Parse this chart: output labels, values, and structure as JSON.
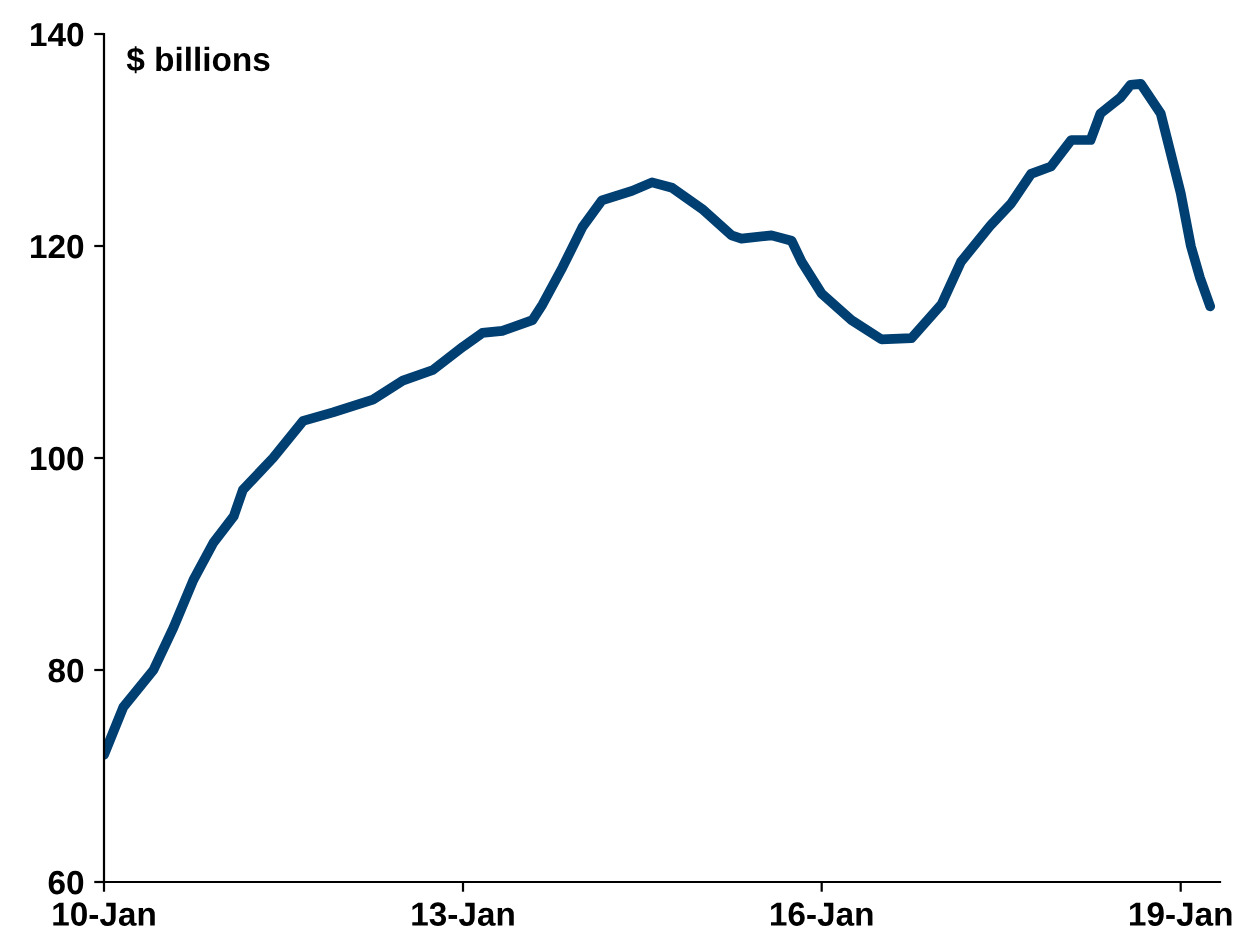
{
  "chart_data": {
    "type": "line",
    "annotations": [
      "$ billions"
    ],
    "x": [
      "2010-01",
      "2010-03",
      "2010-06",
      "2010-08",
      "2010-10",
      "2010-12",
      "2011-02",
      "2011-03",
      "2011-06",
      "2011-09",
      "2011-12",
      "2012-04",
      "2012-07",
      "2012-10",
      "2013-01",
      "2013-03",
      "2013-05",
      "2013-08",
      "2013-09",
      "2013-11",
      "2014-01",
      "2014-03",
      "2014-06",
      "2014-08",
      "2014-10",
      "2015-01",
      "2015-04",
      "2015-05",
      "2015-08",
      "2015-10",
      "2015-11",
      "2016-01",
      "2016-04",
      "2016-07",
      "2016-10",
      "2017-01",
      "2017-03",
      "2017-06",
      "2017-08",
      "2017-10",
      "2017-12",
      "2018-02",
      "2018-04",
      "2018-05",
      "2018-07",
      "2018-08",
      "2018-09",
      "2018-11",
      "2019-01",
      "2019-02",
      "2019-03",
      "2019-04"
    ],
    "series": [
      {
        "color": "#003f72",
        "values": [
          72,
          76.5,
          80,
          84,
          88.5,
          92,
          94.5,
          97,
          100,
          103.5,
          104.3,
          105.5,
          107.3,
          108.3,
          110.5,
          111.8,
          112,
          113,
          114.5,
          118,
          121.8,
          124.3,
          125.2,
          126,
          125.5,
          123.5,
          121,
          120.7,
          121,
          120.5,
          118.5,
          115.5,
          113,
          111.2,
          111.3,
          114.5,
          118.5,
          122,
          124,
          126.8,
          127.5,
          130,
          130,
          132.5,
          134,
          135.2,
          135.3,
          132.5,
          125,
          120,
          117,
          114.3
        ]
      }
    ],
    "xlim": [
      "2010-01",
      "2019-05"
    ],
    "xticks": [
      {
        "value": "2010-01",
        "label": "10-Jan"
      },
      {
        "value": "2013-01",
        "label": "13-Jan"
      },
      {
        "value": "2016-01",
        "label": "16-Jan"
      },
      {
        "value": "2019-01",
        "label": "19-Jan"
      }
    ],
    "ylim": [
      60,
      140
    ],
    "yticks": [
      60,
      80,
      100,
      120,
      140
    ],
    "grid": false,
    "legend": false,
    "marker": "none",
    "line_style": "solid"
  }
}
